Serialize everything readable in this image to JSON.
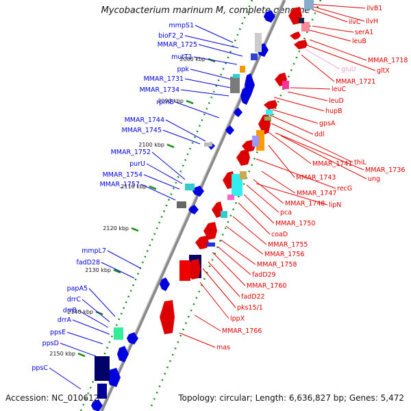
{
  "title": "Mycobacterium marinum M, complete genome",
  "footer": {
    "accession": "Accession: NC_010612",
    "topology": "Topology: circular; Length: 6,636,827 bp; Genes: 5,472"
  },
  "colors": {
    "forward": "#0000dd",
    "reverse": "#dd0000",
    "pseudo": "#f0a0d8",
    "backbone": "#8a8a8a",
    "ticks": "#118811"
  },
  "ticks": [
    "2080 kbp",
    "2090 kbp",
    "2100 kbp",
    "2110 kbp",
    "2120 kbp",
    "2130 kbp",
    "2140 kbp",
    "2150 kbp"
  ],
  "left_labels": [
    "mmpS1",
    "bioF2_2",
    "MMAR_1725",
    "mutT1",
    "ppk",
    "MMAR_1731",
    "MMAR_1734",
    "rpmB",
    "MMAR_1744",
    "MMAR_1745",
    "MMAR_1752",
    "purU",
    "MMAR_1754",
    "MMAR_1757",
    "mmpL7",
    "fadD28",
    "papA5",
    "drrC",
    "drrB",
    "drrA",
    "ppsE",
    "ppsD",
    "ppsC"
  ],
  "right_labels": [
    "ilvB1",
    "ilvC",
    "ilvH",
    "serA1",
    "leuB",
    "MMAR_1718",
    "gluU",
    "gltX",
    "MMAR_1721",
    "leuC",
    "leuD",
    "hupB",
    "gpsA",
    "ddl",
    "thiL",
    "MMAR_1741",
    "MMAR_1736",
    "ung",
    "MMAR_1743",
    "recG",
    "MMAR_1747",
    "MMAR_1748",
    "lipN",
    "pca",
    "MMAR_1750",
    "coaD",
    "MMAR_1755",
    "MMAR_1756",
    "MMAR_1758",
    "fadD29",
    "MMAR_1760",
    "fadD22",
    "pks15/1",
    "lppX",
    "MMAR_1766",
    "mas"
  ]
}
